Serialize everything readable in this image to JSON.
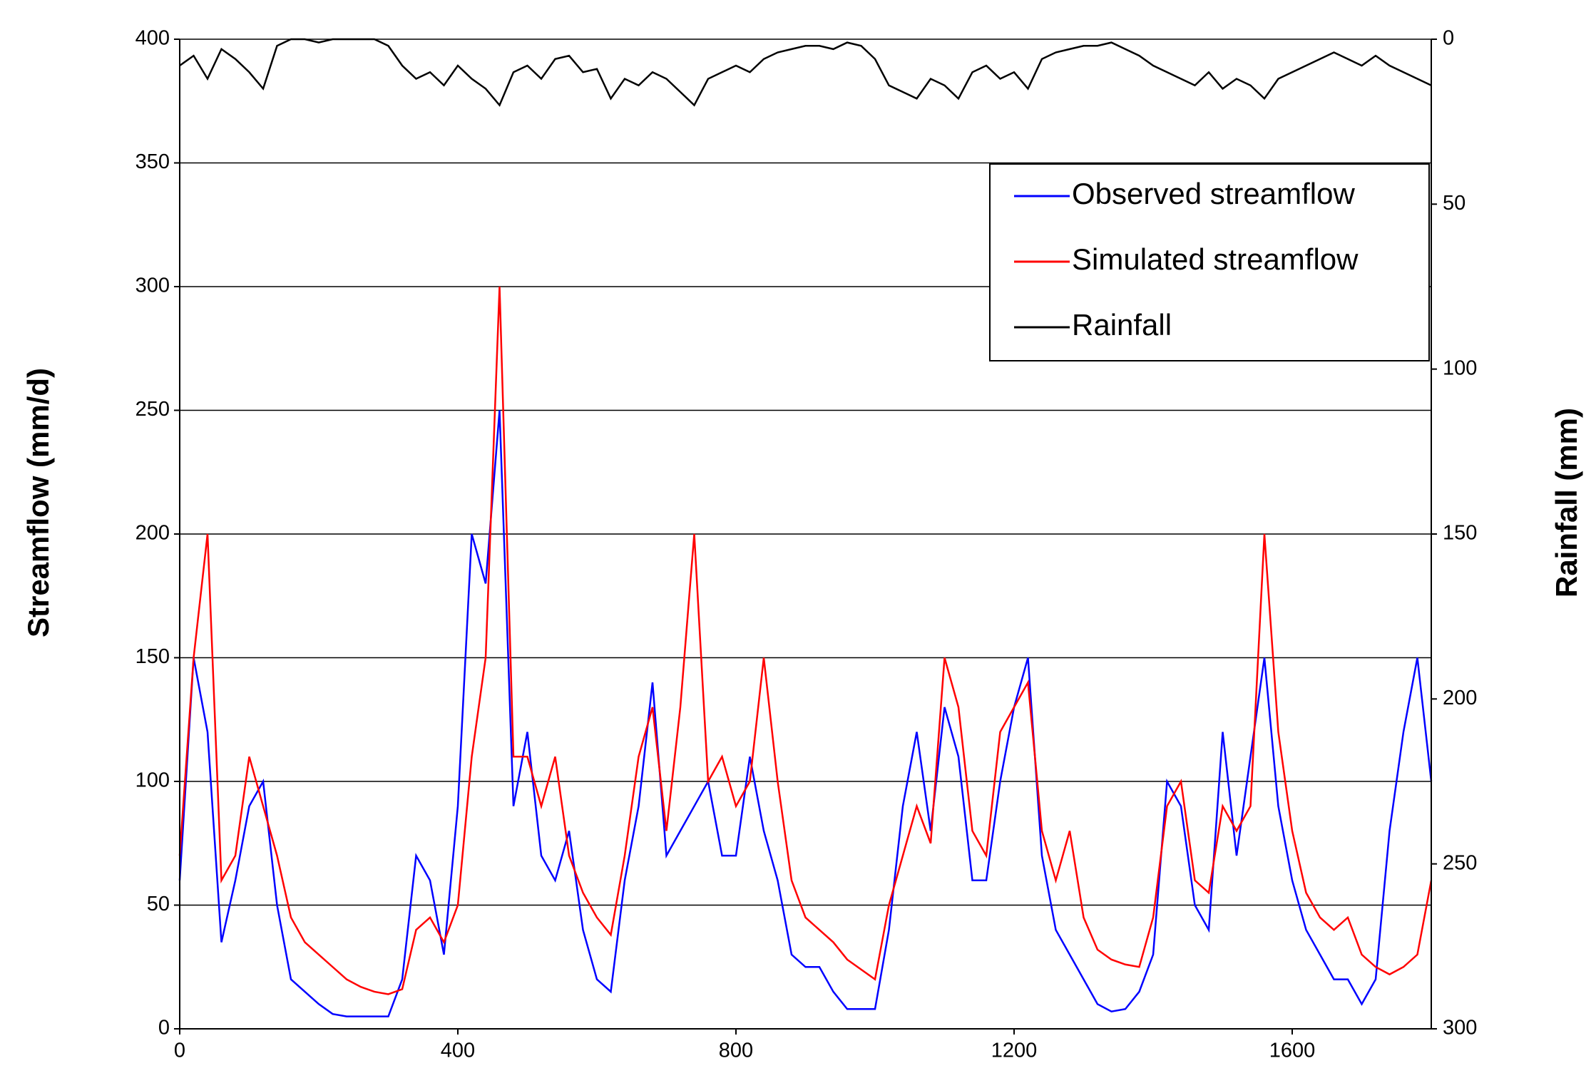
{
  "chart_data": {
    "type": "line",
    "x": [
      0,
      20,
      40,
      60,
      80,
      100,
      120,
      140,
      160,
      180,
      200,
      220,
      240,
      260,
      280,
      300,
      320,
      340,
      360,
      380,
      400,
      420,
      440,
      460,
      480,
      500,
      520,
      540,
      560,
      580,
      600,
      620,
      640,
      660,
      680,
      700,
      720,
      740,
      760,
      780,
      800,
      820,
      840,
      860,
      880,
      900,
      920,
      940,
      960,
      980,
      1000,
      1020,
      1040,
      1060,
      1080,
      1100,
      1120,
      1140,
      1160,
      1180,
      1200,
      1220,
      1240,
      1260,
      1280,
      1300,
      1320,
      1340,
      1360,
      1380,
      1400,
      1420,
      1440,
      1460,
      1480,
      1500,
      1520,
      1540,
      1560,
      1580,
      1600,
      1620,
      1640,
      1660,
      1680,
      1700,
      1720,
      1740,
      1760,
      1780,
      1800
    ],
    "series": [
      {
        "name": "Observed streamflow",
        "color": "#0000ff",
        "values": [
          60,
          150,
          120,
          35,
          60,
          90,
          100,
          50,
          20,
          15,
          10,
          6,
          5,
          5,
          5,
          5,
          20,
          70,
          60,
          30,
          90,
          200,
          180,
          250,
          90,
          120,
          70,
          60,
          80,
          40,
          20,
          15,
          60,
          90,
          140,
          70,
          80,
          90,
          100,
          70,
          70,
          110,
          80,
          60,
          30,
          25,
          25,
          15,
          8,
          8,
          8,
          40,
          90,
          120,
          80,
          130,
          110,
          60,
          60,
          100,
          130,
          150,
          70,
          40,
          30,
          20,
          10,
          7,
          8,
          15,
          30,
          100,
          90,
          50,
          40,
          120,
          70,
          110,
          150,
          90,
          60,
          40,
          30,
          20,
          20,
          10,
          20,
          80,
          120,
          150,
          100
        ]
      },
      {
        "name": "Simulated streamflow",
        "color": "#ff0000",
        "values": [
          70,
          150,
          200,
          60,
          70,
          110,
          90,
          70,
          45,
          35,
          30,
          25,
          20,
          17,
          15,
          14,
          16,
          40,
          45,
          35,
          50,
          110,
          150,
          300,
          110,
          110,
          90,
          110,
          70,
          55,
          45,
          38,
          70,
          110,
          130,
          80,
          130,
          200,
          100,
          110,
          90,
          100,
          150,
          100,
          60,
          45,
          40,
          35,
          28,
          24,
          20,
          50,
          70,
          90,
          75,
          150,
          130,
          80,
          70,
          120,
          130,
          140,
          80,
          60,
          80,
          45,
          32,
          28,
          26,
          25,
          45,
          90,
          100,
          60,
          55,
          90,
          80,
          90,
          200,
          120,
          80,
          55,
          45,
          40,
          45,
          30,
          25,
          22,
          25,
          30,
          60
        ]
      },
      {
        "name": "Rainfall",
        "color": "#000000",
        "axis": "y2",
        "values": [
          8,
          5,
          12,
          3,
          6,
          10,
          15,
          2,
          0,
          0,
          1,
          0,
          0,
          0,
          0,
          2,
          8,
          12,
          10,
          14,
          8,
          12,
          15,
          20,
          10,
          8,
          12,
          6,
          5,
          10,
          9,
          18,
          12,
          14,
          10,
          12,
          16,
          20,
          12,
          10,
          8,
          10,
          6,
          4,
          3,
          2,
          2,
          3,
          1,
          2,
          6,
          14,
          16,
          18,
          12,
          14,
          18,
          10,
          8,
          12,
          10,
          15,
          6,
          4,
          3,
          2,
          2,
          1,
          3,
          5,
          8,
          10,
          12,
          14,
          10,
          15,
          12,
          14,
          18,
          12,
          10,
          8,
          6,
          4,
          6,
          8,
          5,
          8,
          10,
          12,
          14
        ]
      }
    ],
    "xlim": [
      0,
      1800
    ],
    "xticks": [
      0,
      400,
      800,
      1200,
      1600
    ],
    "ylim": [
      0,
      400
    ],
    "yticks": [
      0,
      50,
      100,
      150,
      200,
      250,
      300,
      350,
      400
    ],
    "y2lim": [
      300,
      0
    ],
    "y2ticks": [
      0,
      50,
      100,
      150,
      200,
      250,
      300
    ],
    "y_label": "Streamflow (mm/d)",
    "y2_label": "Rainfall (mm)",
    "grid": true,
    "legend": "upper right"
  }
}
